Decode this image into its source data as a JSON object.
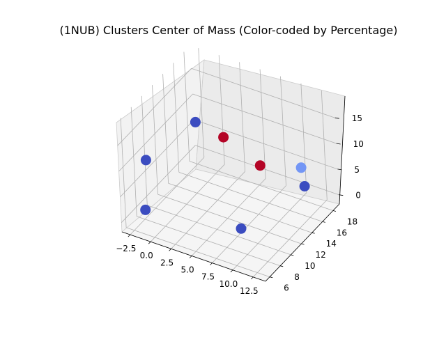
{
  "chart_data": {
    "type": "scatter",
    "projection": "3d",
    "title": "(1NUB) Clusters Center of Mass (Color-coded by Percentage)",
    "xlabel": "",
    "ylabel": "",
    "zlabel": "",
    "x_ticks": [
      "−2.5",
      "0.0",
      "2.5",
      "5.0",
      "7.5",
      "10.0",
      "12.5"
    ],
    "y_ticks": [
      "6",
      "8",
      "10",
      "12",
      "14",
      "16",
      "18"
    ],
    "z_ticks": [
      "0",
      "5",
      "10",
      "15"
    ],
    "grid": true,
    "colormap": "coolwarm",
    "points": [
      {
        "x": 3.0,
        "y": 10.0,
        "z": 18.0,
        "color": "#3b4cc0"
      },
      {
        "x": 5.0,
        "y": 12.0,
        "z": 14.0,
        "color": "#b40426"
      },
      {
        "x": -2.0,
        "y": 8.0,
        "z": 10.0,
        "color": "#3b4cc0"
      },
      {
        "x": 8.0,
        "y": 14.0,
        "z": 8.0,
        "color": "#b40426"
      },
      {
        "x": 11.0,
        "y": 17.0,
        "z": 6.0,
        "color": "#7396f5"
      },
      {
        "x": 12.0,
        "y": 16.0,
        "z": 4.0,
        "color": "#3b4cc0"
      },
      {
        "x": -1.0,
        "y": 6.0,
        "z": 3.0,
        "color": "#3b4cc0"
      },
      {
        "x": 8.0,
        "y": 10.0,
        "z": 0.0,
        "color": "#3b4cc0"
      }
    ]
  }
}
